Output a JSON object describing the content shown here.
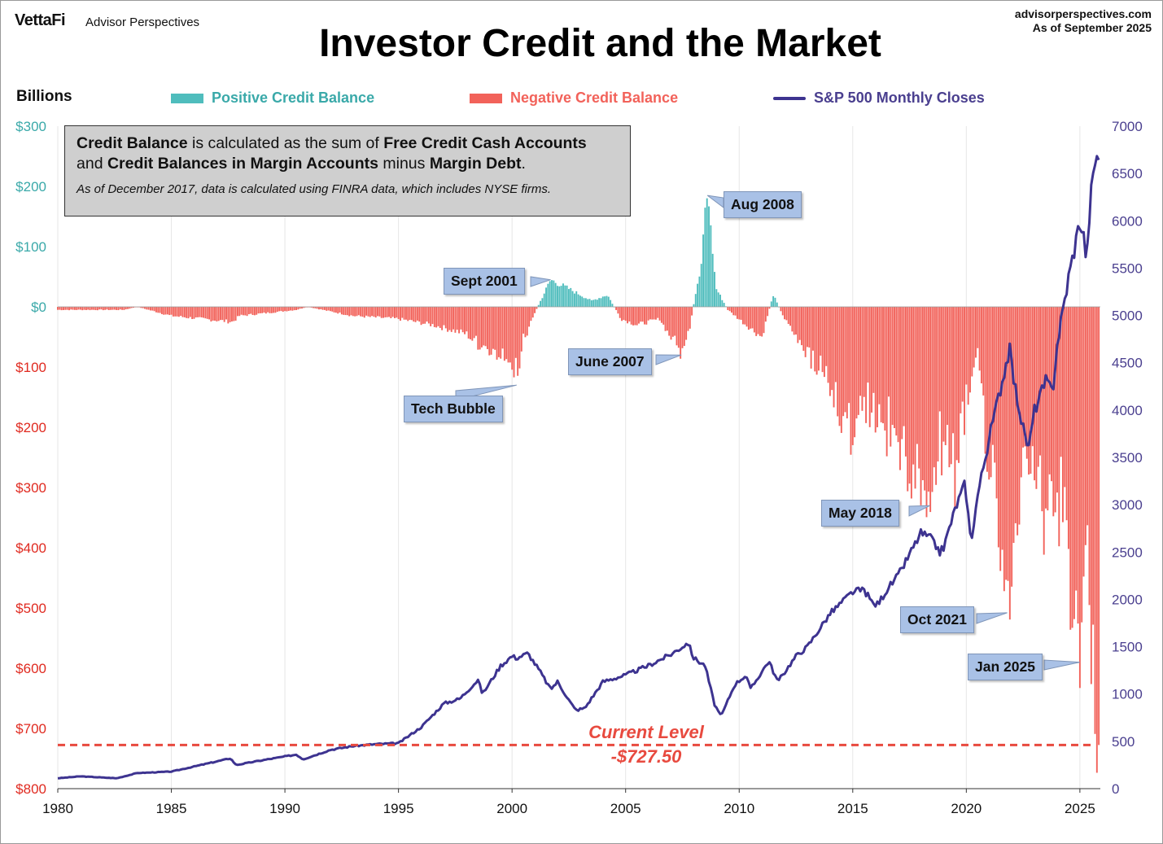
{
  "header": {
    "brand": "VettaFi",
    "brand_sub": "Advisor Perspectives",
    "site": "advisorperspectives.com",
    "as_of": "As of September 2025"
  },
  "colors": {
    "positive": "#4fbdbd",
    "negative": "#f2625a",
    "sp500": "#3d3390",
    "left_axis_pos": "#3aa9a9",
    "left_axis_neg": "#e02a20",
    "right_axis": "#4a3f8f",
    "callout_bg": "#a9c1e6",
    "current_line": "#e84a3f"
  },
  "note_box": {
    "line1_parts": [
      "Credit Balance",
      " is calculated as the sum of ",
      "Free Credit Cash Accounts"
    ],
    "line2_parts": [
      "and ",
      "Credit Balances in Margin Accounts",
      " minus ",
      "Margin Debt",
      "."
    ],
    "line3": "As of December 2017, data is calculated using FINRA data, which includes NYSE firms."
  },
  "callouts": [
    {
      "id": "sept-2001",
      "label": "Sept 2001",
      "date": 2001.7,
      "value": 45
    },
    {
      "id": "aug-2008",
      "label": "Aug 2008",
      "date": 2008.6,
      "value": 185
    },
    {
      "id": "tech-bubble",
      "label": "Tech Bubble",
      "date": 2000.2,
      "value": -130
    },
    {
      "id": "june-2007",
      "label": "June 2007",
      "date": 2007.45,
      "value": -80
    },
    {
      "id": "may-2018",
      "label": "May 2018",
      "date": 2018.4,
      "value": -330
    },
    {
      "id": "oct-2021",
      "label": "Oct 2021",
      "date": 2021.8,
      "value": -508
    },
    {
      "id": "jan-2025",
      "label": "Jan 2025",
      "date": 2025.0,
      "value": -590
    }
  ],
  "current_level": {
    "label": "Current Level",
    "value_label": "-$727.50",
    "value": -727.5
  },
  "chart_data": {
    "type": "bar",
    "title": "Investor Credit and the Market",
    "ylabel": "Billions",
    "x_range": [
      1980,
      2025.9
    ],
    "x_ticks": [
      1980,
      1985,
      1990,
      1995,
      2000,
      2005,
      2010,
      2015,
      2020,
      2025
    ],
    "left_axis": {
      "range": [
        -800,
        300
      ],
      "ticks": [
        300,
        200,
        100,
        0,
        -100,
        -200,
        -300,
        -400,
        -500,
        -600,
        -700,
        -800
      ],
      "tick_labels": [
        "$300",
        "$200",
        "$100",
        "$0",
        "$100",
        "$200",
        "$300",
        "$400",
        "$500",
        "$600",
        "$700",
        "$800"
      ]
    },
    "right_axis": {
      "range": [
        0,
        7000
      ],
      "ticks": [
        0,
        500,
        1000,
        1500,
        2000,
        2500,
        3000,
        3500,
        4000,
        4500,
        5000,
        5500,
        6000,
        6500,
        7000
      ],
      "tick_labels": [
        "0",
        "500",
        "1000",
        "1500",
        "2000",
        "2500",
        "3000",
        "3500",
        "4000",
        "4500",
        "5000",
        "5500",
        "6000",
        "6500",
        "7000"
      ]
    },
    "legend": [
      "Positive Credit Balance",
      "Negative Credit Balance",
      "S&P 500 Monthly Closes"
    ],
    "legend_placement": "top",
    "grid": "vertical",
    "credit_balance": {
      "name": "Credit Balance",
      "x": [
        1980.0,
        1982.9,
        1983.5,
        1985.0,
        1987.7,
        1988.0,
        1990.5,
        1991.0,
        1993.0,
        1995.0,
        1996.5,
        1998.0,
        1998.5,
        1999.5,
        2000.15,
        2000.5,
        2001.0,
        2001.7,
        2002.5,
        2003.5,
        2004.2,
        2004.8,
        2005.5,
        2006.5,
        2007.45,
        2007.8,
        2008.2,
        2008.6,
        2009.0,
        2009.5,
        2010.3,
        2011.0,
        2011.5,
        2012.0,
        2013.0,
        2014.0,
        2015.0,
        2015.5,
        2016.5,
        2017.5,
        2018.4,
        2018.9,
        2019.5,
        2020.2,
        2020.5,
        2021.0,
        2021.8,
        2022.5,
        2023.5,
        2024.0,
        2025.0,
        2025.3,
        2025.7
      ],
      "values": [
        -5,
        -5,
        0,
        -15,
        -25,
        -15,
        -5,
        0,
        -15,
        -20,
        -30,
        -45,
        -65,
        -80,
        -130,
        -60,
        -10,
        45,
        30,
        10,
        20,
        -20,
        -30,
        -20,
        -80,
        -40,
        50,
        185,
        30,
        -5,
        -30,
        -50,
        20,
        -20,
        -80,
        -140,
        -230,
        -180,
        -220,
        -280,
        -330,
        -250,
        -300,
        -120,
        -80,
        -300,
        -508,
        -260,
        -380,
        -330,
        -590,
        -450,
        -727.5
      ]
    },
    "sp500": {
      "name": "S&P 500 Monthly Closes",
      "x": [
        1980.0,
        1981.0,
        1982.6,
        1983.5,
        1985.0,
        1987.6,
        1987.85,
        1989.0,
        1990.5,
        1990.8,
        1992.0,
        1993.0,
        1994.0,
        1995.0,
        1996.0,
        1997.0,
        1997.7,
        1998.5,
        1998.7,
        1999.5,
        2000.0,
        2000.2,
        2000.7,
        2001.2,
        2001.7,
        2002.0,
        2002.6,
        2002.8,
        2003.2,
        2004.0,
        2005.0,
        2006.0,
        2007.0,
        2007.75,
        2008.0,
        2008.5,
        2008.9,
        2009.2,
        2009.8,
        2010.3,
        2010.5,
        2011.3,
        2011.7,
        2012.5,
        2013.0,
        2014.0,
        2015.0,
        2015.5,
        2015.9,
        2016.1,
        2016.5,
        2017.0,
        2018.0,
        2018.4,
        2018.85,
        2019.0,
        2019.5,
        2019.95,
        2020.2,
        2020.5,
        2021.0,
        2021.9,
        2022.1,
        2022.5,
        2022.75,
        2023.0,
        2023.5,
        2023.8,
        2024.0,
        2024.5,
        2025.0,
        2025.2,
        2025.3,
        2025.45,
        2025.7
      ],
      "values": [
        110,
        130,
        110,
        165,
        180,
        320,
        250,
        300,
        360,
        310,
        410,
        450,
        470,
        480,
        650,
        900,
        950,
        1150,
        1000,
        1300,
        1400,
        1380,
        1430,
        1250,
        1050,
        1130,
        900,
        830,
        850,
        1130,
        1200,
        1300,
        1420,
        1540,
        1380,
        1300,
        900,
        760,
        1100,
        1200,
        1050,
        1350,
        1130,
        1400,
        1500,
        1850,
        2080,
        2100,
        1950,
        1950,
        2100,
        2250,
        2700,
        2650,
        2500,
        2550,
        2950,
        3230,
        2600,
        3100,
        3700,
        4650,
        4300,
        3800,
        3600,
        4000,
        4300,
        4200,
        4700,
        5400,
        6000,
        5800,
        5550,
        6200,
        6690
      ]
    }
  }
}
